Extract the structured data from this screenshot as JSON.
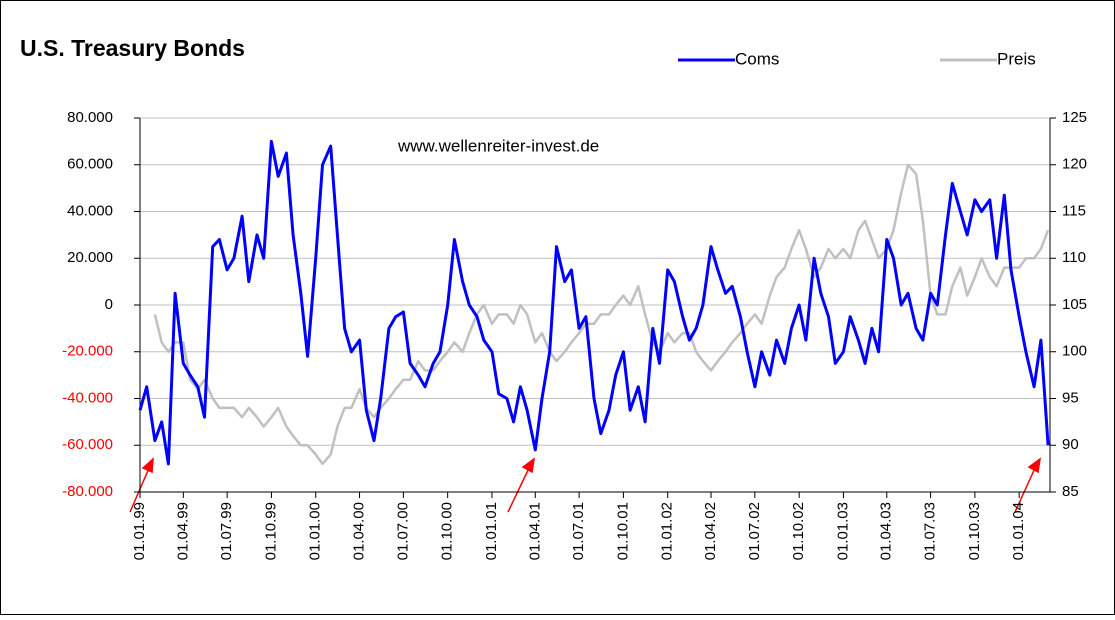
{
  "chart_data": {
    "type": "line",
    "title": "U.S. Treasury Bonds",
    "annotations": [
      "www.wellenreiter-invest.de"
    ],
    "x": [
      "1999-01-01",
      "1999-01-15",
      "1999-02-01",
      "1999-02-15",
      "1999-03-01",
      "1999-03-15",
      "1999-04-01",
      "1999-04-15",
      "1999-05-01",
      "1999-05-15",
      "1999-06-01",
      "1999-06-15",
      "1999-07-01",
      "1999-07-15",
      "1999-08-01",
      "1999-08-15",
      "1999-09-01",
      "1999-09-15",
      "1999-10-01",
      "1999-10-15",
      "1999-11-01",
      "1999-11-15",
      "1999-12-01",
      "1999-12-15",
      "2000-01-01",
      "2000-01-15",
      "2000-02-01",
      "2000-02-15",
      "2000-03-01",
      "2000-03-15",
      "2000-04-01",
      "2000-04-15",
      "2000-05-01",
      "2000-05-15",
      "2000-06-01",
      "2000-06-15",
      "2000-07-01",
      "2000-07-15",
      "2000-08-01",
      "2000-08-15",
      "2000-09-01",
      "2000-09-15",
      "2000-10-01",
      "2000-10-15",
      "2000-11-01",
      "2000-11-15",
      "2000-12-01",
      "2000-12-15",
      "2001-01-01",
      "2001-01-15",
      "2001-02-01",
      "2001-02-15",
      "2001-03-01",
      "2001-03-15",
      "2001-04-01",
      "2001-04-15",
      "2001-05-01",
      "2001-05-15",
      "2001-06-01",
      "2001-06-15",
      "2001-07-01",
      "2001-07-15",
      "2001-08-01",
      "2001-08-15",
      "2001-09-01",
      "2001-09-15",
      "2001-10-01",
      "2001-10-15",
      "2001-11-01",
      "2001-11-15",
      "2001-12-01",
      "2001-12-15",
      "2002-01-01",
      "2002-01-15",
      "2002-02-01",
      "2002-02-15",
      "2002-03-01",
      "2002-03-15",
      "2002-04-01",
      "2002-04-15",
      "2002-05-01",
      "2002-05-15",
      "2002-06-01",
      "2002-06-15",
      "2002-07-01",
      "2002-07-15",
      "2002-08-01",
      "2002-08-15",
      "2002-09-01",
      "2002-09-15",
      "2002-10-01",
      "2002-10-15",
      "2002-11-01",
      "2002-11-15",
      "2002-12-01",
      "2002-12-15",
      "2003-01-01",
      "2003-01-15",
      "2003-02-01",
      "2003-02-15",
      "2003-03-01",
      "2003-03-15",
      "2003-04-01",
      "2003-04-15",
      "2003-05-01",
      "2003-05-15",
      "2003-06-01",
      "2003-06-15",
      "2003-07-01",
      "2003-07-15",
      "2003-08-01",
      "2003-08-15",
      "2003-09-01",
      "2003-09-15",
      "2003-10-01",
      "2003-10-15",
      "2003-11-01",
      "2003-11-15",
      "2003-12-01",
      "2003-12-15",
      "2004-01-01",
      "2004-01-15",
      "2004-02-01",
      "2004-02-15",
      "2004-03-01"
    ],
    "series": [
      {
        "name": "Coms",
        "color": "#0000ff",
        "axis": "y",
        "values": [
          -45000,
          -35000,
          -58000,
          -50000,
          -68000,
          5000,
          -25000,
          -30000,
          -35000,
          -48000,
          25000,
          28000,
          15000,
          20000,
          38000,
          10000,
          30000,
          20000,
          70000,
          55000,
          65000,
          30000,
          5000,
          -22000,
          20000,
          60000,
          68000,
          30000,
          -10000,
          -20000,
          -15000,
          -45000,
          -58000,
          -40000,
          -10000,
          -5000,
          -3000,
          -25000,
          -30000,
          -35000,
          -25000,
          -20000,
          0,
          28000,
          10000,
          0,
          -5000,
          -15000,
          -20000,
          -38000,
          -40000,
          -50000,
          -35000,
          -45000,
          -62000,
          -40000,
          -20000,
          25000,
          10000,
          15000,
          -10000,
          -5000,
          -40000,
          -55000,
          -45000,
          -30000,
          -20000,
          -45000,
          -35000,
          -50000,
          -10000,
          -25000,
          15000,
          10000,
          -5000,
          -15000,
          -10000,
          0,
          25000,
          15000,
          5000,
          8000,
          -5000,
          -20000,
          -35000,
          -20000,
          -30000,
          -15000,
          -25000,
          -10000,
          0,
          -15000,
          20000,
          5000,
          -5000,
          -25000,
          -20000,
          -5000,
          -15000,
          -25000,
          -10000,
          -20000,
          28000,
          20000,
          0,
          5000,
          -10000,
          -15000,
          5000,
          0,
          30000,
          52000,
          40000,
          30000,
          45000,
          40000,
          45000,
          20000,
          47000,
          15000,
          -5000,
          -20000,
          -35000,
          -15000,
          -60000
        ]
      },
      {
        "name": "Preis",
        "color": "#c0c0c0",
        "axis": "y2",
        "values": [
          null,
          null,
          104,
          101,
          100,
          101,
          101,
          97,
          96,
          97,
          95,
          94,
          94,
          94,
          93,
          94,
          93,
          92,
          93,
          94,
          92,
          91,
          90,
          90,
          89,
          88,
          89,
          92,
          94,
          94,
          96,
          94,
          93,
          94,
          95,
          96,
          97,
          97,
          99,
          98,
          98,
          99,
          100,
          101,
          100,
          102,
          104,
          105,
          103,
          104,
          104,
          103,
          105,
          104,
          101,
          102,
          100,
          99,
          100,
          101,
          102,
          103,
          103,
          104,
          104,
          105,
          106,
          105,
          107,
          104,
          101,
          100,
          102,
          101,
          102,
          102,
          100,
          99,
          98,
          99,
          100,
          101,
          102,
          103,
          104,
          103,
          106,
          108,
          109,
          111,
          113,
          111,
          108,
          109,
          111,
          110,
          111,
          110,
          113,
          114,
          112,
          110,
          111,
          113,
          117,
          120,
          119,
          114,
          106,
          104,
          104,
          107,
          109,
          106,
          108,
          110,
          108,
          107,
          109,
          109,
          109,
          110,
          110,
          111,
          113
        ]
      }
    ],
    "xlim": [
      "1999-01-01",
      "2004-03-05"
    ],
    "xticks": [
      {
        "value": "1999-01-01",
        "label": "01.01.99"
      },
      {
        "value": "1999-04-01",
        "label": "01.04.99"
      },
      {
        "value": "1999-07-01",
        "label": "01.07.99"
      },
      {
        "value": "1999-10-01",
        "label": "01.10.99"
      },
      {
        "value": "2000-01-01",
        "label": "01.01.00"
      },
      {
        "value": "2000-04-01",
        "label": "01.04.00"
      },
      {
        "value": "2000-07-01",
        "label": "01.07.00"
      },
      {
        "value": "2000-10-01",
        "label": "01.10.00"
      },
      {
        "value": "2001-01-01",
        "label": "01.01.01"
      },
      {
        "value": "2001-04-01",
        "label": "01.04.01"
      },
      {
        "value": "2001-07-01",
        "label": "01.07.01"
      },
      {
        "value": "2001-10-01",
        "label": "01.10.01"
      },
      {
        "value": "2002-01-01",
        "label": "01.01.02"
      },
      {
        "value": "2002-04-01",
        "label": "01.04.02"
      },
      {
        "value": "2002-07-01",
        "label": "01.07.02"
      },
      {
        "value": "2002-10-01",
        "label": "01.10.02"
      },
      {
        "value": "2003-01-01",
        "label": "01.01.03"
      },
      {
        "value": "2003-04-01",
        "label": "01.04.03"
      },
      {
        "value": "2003-07-01",
        "label": "01.07.03"
      },
      {
        "value": "2003-10-01",
        "label": "01.10.03"
      },
      {
        "value": "2004-01-01",
        "label": "01.01.04"
      }
    ],
    "ylim": [
      -80000,
      80000
    ],
    "yticks": [
      {
        "value": -80000,
        "label": "-80.000"
      },
      {
        "value": -60000,
        "label": "-60.000"
      },
      {
        "value": -40000,
        "label": "-40.000"
      },
      {
        "value": -20000,
        "label": "-20.000"
      },
      0,
      {
        "value": 20000,
        "label": "20.000"
      },
      {
        "value": 40000,
        "label": "40.000"
      },
      {
        "value": 60000,
        "label": "60.000"
      },
      {
        "value": 80000,
        "label": "80.000"
      }
    ],
    "y2lim": [
      85,
      125
    ],
    "y2ticks": [
      85,
      90,
      95,
      100,
      105,
      110,
      115,
      120,
      125
    ],
    "negative_tick_color": "#ff0000",
    "grid": true,
    "legend": "top-right"
  }
}
